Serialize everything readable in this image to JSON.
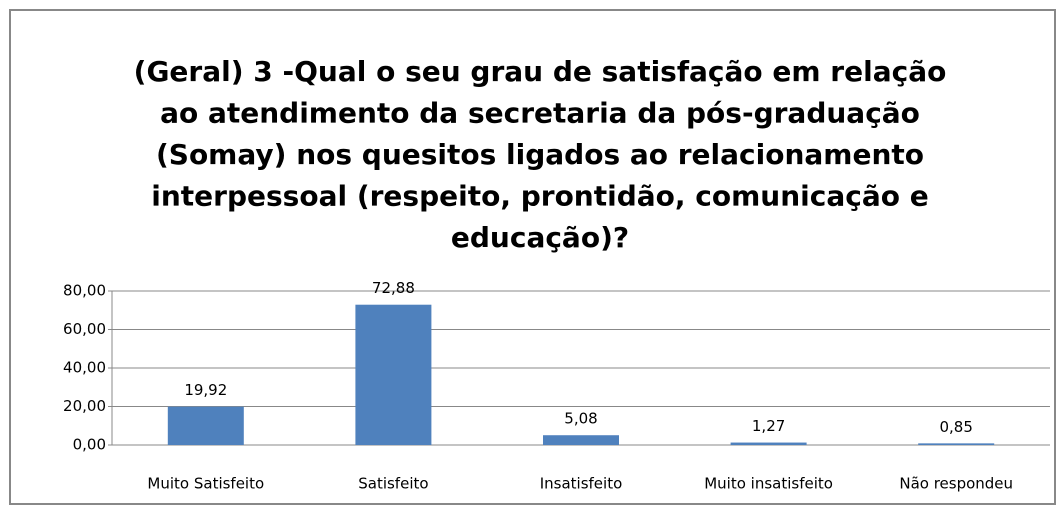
{
  "chart_data": {
    "type": "bar",
    "title": [
      "(Geral) 3 -Qual o seu grau de satisfação em relação",
      "ao atendimento da secretaria da pós-graduação",
      "(Somay) nos quesitos ligados ao relacionamento",
      "interpessoal (respeito, prontidão, comunicação e",
      "educação)?"
    ],
    "categories": [
      "Muito Satisfeito",
      "Satisfeito",
      "Insatisfeito",
      "Muito insatisfeito",
      "Não respondeu"
    ],
    "values": [
      19.92,
      72.88,
      5.08,
      1.27,
      0.85
    ],
    "value_labels": [
      "19,92",
      "72,88",
      "5,08",
      "1,27",
      "0,85"
    ],
    "color": "#4f81bd",
    "ylim": [
      0,
      80
    ],
    "yticks": [
      {
        "value": 0,
        "label": "0,00"
      },
      {
        "value": 20,
        "label": "20,00"
      },
      {
        "value": 40,
        "label": "40,00"
      },
      {
        "value": 60,
        "label": "60,00"
      },
      {
        "value": 80,
        "label": "80,00"
      }
    ],
    "grid": true
  }
}
